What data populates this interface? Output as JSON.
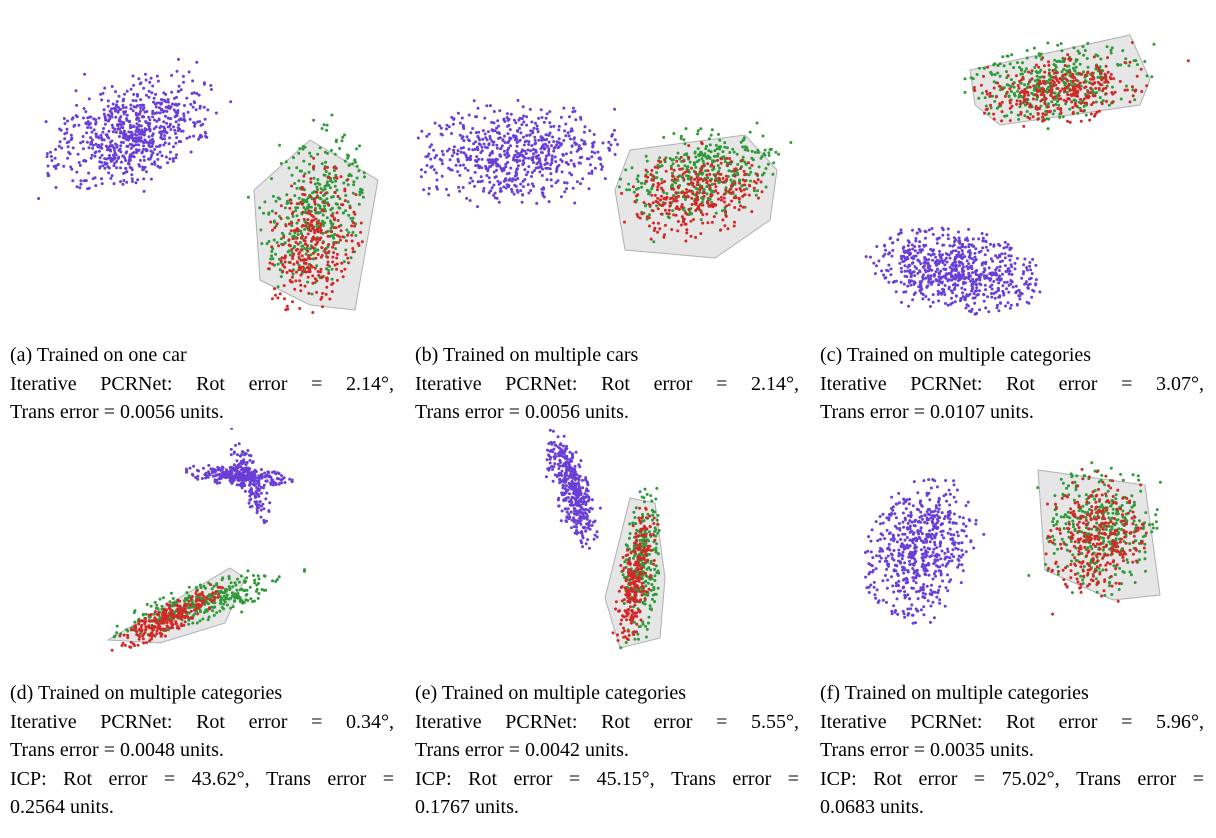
{
  "colors": {
    "source": "#6a3fd6",
    "template": "#2e9a38",
    "result": "#d42828",
    "mesh": "#c8c8c8"
  },
  "panels": [
    {
      "title": "(a) Trained on one car",
      "pcr_words": [
        "Iterative",
        "PCRNet:",
        "Rot",
        "error",
        "=",
        "2.14°,"
      ],
      "pcr_trans": "Trans error = 0.0056 units.",
      "icp_words": [],
      "icp_trans": ""
    },
    {
      "title": "(b) Trained on multiple cars",
      "pcr_words": [
        "Iterative",
        "PCRNet:",
        "Rot",
        "error",
        "=",
        "2.14°,"
      ],
      "pcr_trans": "Trans error = 0.0056 units.",
      "icp_words": [],
      "icp_trans": ""
    },
    {
      "title": "(c) Trained on multiple categories",
      "pcr_words": [
        "Iterative",
        "PCRNet:",
        "Rot",
        "error",
        "=",
        "3.07°,"
      ],
      "pcr_trans": "Trans error = 0.0107 units.",
      "icp_words": [],
      "icp_trans": ""
    },
    {
      "title": "(d) Trained on multiple categories",
      "pcr_words": [
        "Iterative",
        "PCRNet:",
        "Rot",
        "error",
        "=",
        "0.34°,"
      ],
      "pcr_trans": "Trans error = 0.0048 units.",
      "icp_words": [
        "ICP:",
        "Rot",
        "error",
        "=",
        "43.62°,",
        "Trans",
        "error",
        "="
      ],
      "icp_trans": "0.2564 units."
    },
    {
      "title": "(e) Trained on multiple categories",
      "pcr_words": [
        "Iterative",
        "PCRNet:",
        "Rot",
        "error",
        "=",
        "5.55°,"
      ],
      "pcr_trans": "Trans error = 0.0042 units.",
      "icp_words": [
        "ICP:",
        "Rot",
        "error",
        "=",
        "45.15°,",
        "Trans",
        "error",
        "="
      ],
      "icp_trans": "0.1767 units."
    },
    {
      "title": "(f) Trained on multiple categories",
      "pcr_words": [
        "Iterative",
        "PCRNet:",
        "Rot",
        "error",
        "=",
        "5.96°,"
      ],
      "pcr_trans": "Trans error = 0.0035 units.",
      "icp_words": [
        "ICP:",
        "Rot",
        "error",
        "=",
        "75.02°,",
        "Trans",
        "error",
        "="
      ],
      "icp_trans": "0.0683 units."
    }
  ]
}
